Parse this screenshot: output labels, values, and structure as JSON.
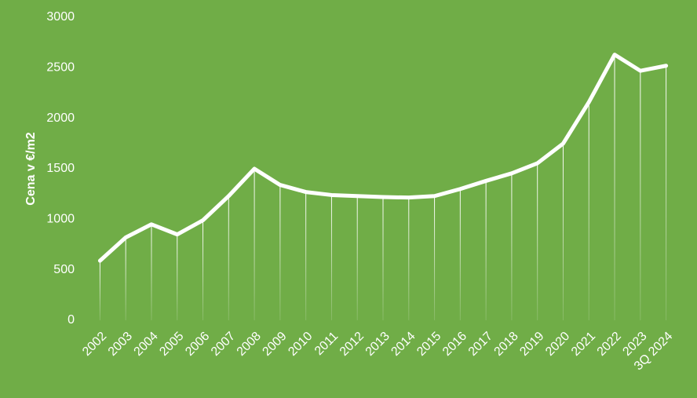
{
  "chart_data": {
    "type": "line",
    "y_label": "Cena v €/m2",
    "categories": [
      "2002",
      "2003",
      "2004",
      "2005",
      "2006",
      "2007",
      "2008",
      "2009",
      "2010",
      "2011",
      "2012",
      "2013",
      "2014",
      "2015",
      "2016",
      "2017",
      "2018",
      "2019",
      "2020",
      "2021",
      "2022",
      "2023",
      "3Q 2024"
    ],
    "values": [
      590,
      820,
      950,
      850,
      990,
      1230,
      1500,
      1340,
      1270,
      1240,
      1230,
      1220,
      1215,
      1230,
      1300,
      1380,
      1455,
      1555,
      1750,
      2160,
      2630,
      2470,
      2520
    ],
    "color": "#ffffff",
    "drop_lines": true,
    "ylim": [
      0,
      3000
    ],
    "yticks": [
      0,
      500,
      1000,
      1500,
      2000,
      2500,
      3000
    ]
  }
}
